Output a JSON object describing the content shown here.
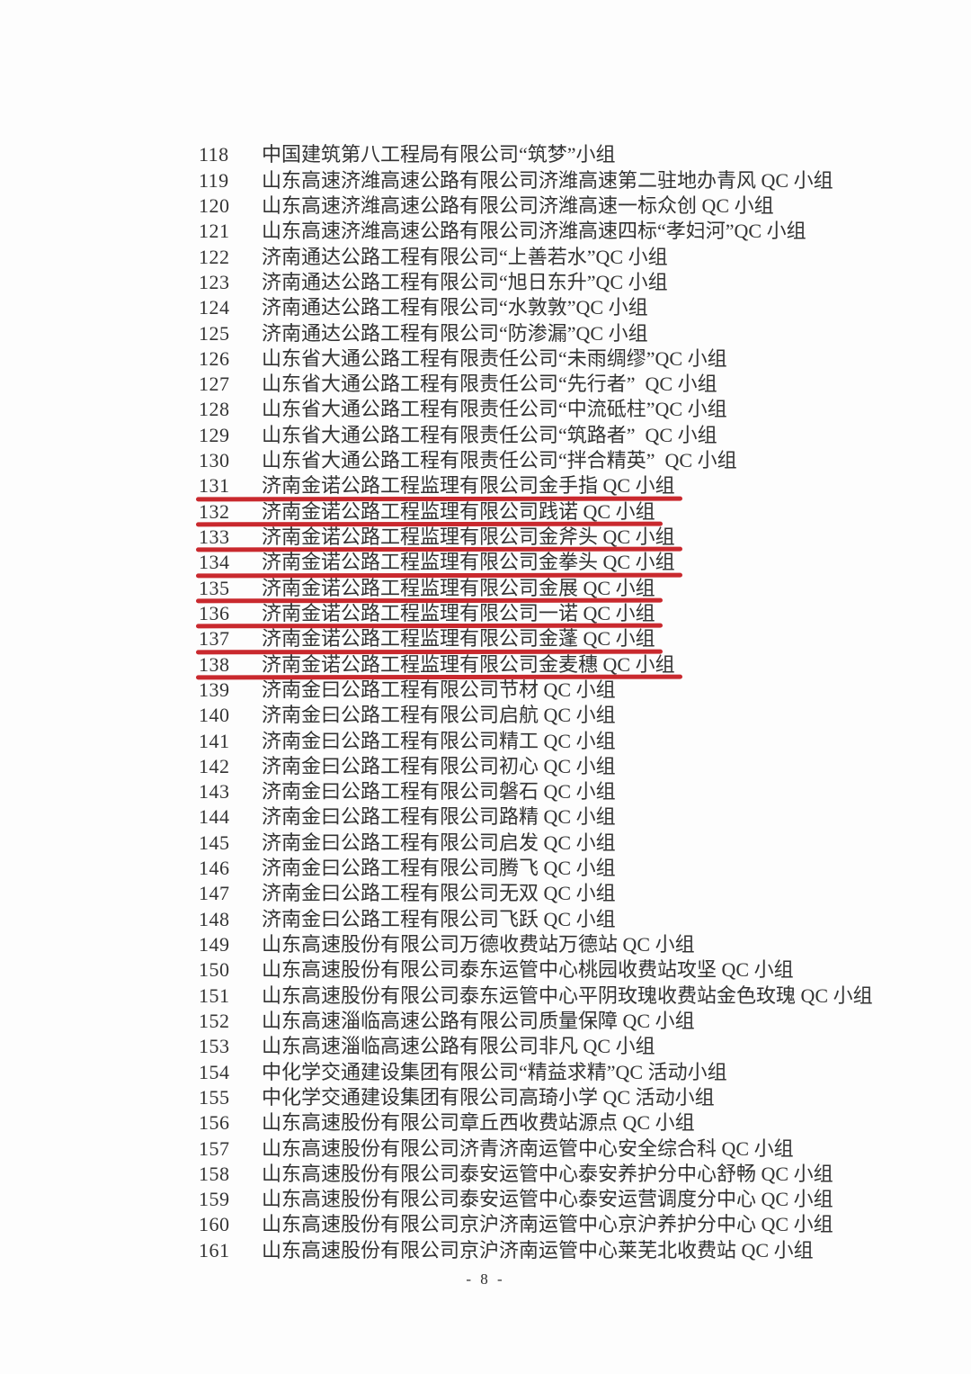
{
  "page": {
    "number_label": "- 8 -"
  },
  "colors": {
    "underline_red": "#c9292e",
    "ink": "#333333",
    "paper": "#fdfdfd"
  },
  "list": {
    "items": [
      {
        "no": "118",
        "text": "中国建筑第八工程局有限公司“筑梦”小组",
        "underlined": false
      },
      {
        "no": "119",
        "text": "山东高速济潍高速公路有限公司济潍高速第二驻地办青风 QC 小组",
        "underlined": false
      },
      {
        "no": "120",
        "text": "山东高速济潍高速公路有限公司济潍高速一标众创 QC 小组",
        "underlined": false
      },
      {
        "no": "121",
        "text": "山东高速济潍高速公路有限公司济潍高速四标“孝妇河”QC 小组",
        "underlined": false
      },
      {
        "no": "122",
        "text": "济南通达公路工程有限公司“上善若水”QC 小组",
        "underlined": false
      },
      {
        "no": "123",
        "text": "济南通达公路工程有限公司“旭日东升”QC 小组",
        "underlined": false
      },
      {
        "no": "124",
        "text": "济南通达公路工程有限公司“水敦敦”QC 小组",
        "underlined": false
      },
      {
        "no": "125",
        "text": "济南通达公路工程有限公司“防渗漏”QC 小组",
        "underlined": false
      },
      {
        "no": "126",
        "text": "山东省大通公路工程有限责任公司“未雨绸缪”QC 小组",
        "underlined": false
      },
      {
        "no": "127",
        "text": "山东省大通公路工程有限责任公司“先行者”  QC 小组",
        "underlined": false
      },
      {
        "no": "128",
        "text": "山东省大通公路工程有限责任公司“中流砥柱”QC 小组",
        "underlined": false
      },
      {
        "no": "129",
        "text": "山东省大通公路工程有限责任公司“筑路者”  QC 小组",
        "underlined": false
      },
      {
        "no": "130",
        "text": "山东省大通公路工程有限责任公司“拌合精英”  QC 小组",
        "underlined": false
      },
      {
        "no": "131",
        "text": "济南金诺公路工程监理有限公司金手指 QC 小组",
        "underlined": true
      },
      {
        "no": "132",
        "text": "济南金诺公路工程监理有限公司践诺 QC 小组",
        "underlined": true
      },
      {
        "no": "133",
        "text": "济南金诺公路工程监理有限公司金斧头 QC 小组",
        "underlined": true
      },
      {
        "no": "134",
        "text": "济南金诺公路工程监理有限公司金拳头 QC 小组",
        "underlined": true
      },
      {
        "no": "135",
        "text": "济南金诺公路工程监理有限公司金展 QC 小组",
        "underlined": true
      },
      {
        "no": "136",
        "text": "济南金诺公路工程监理有限公司一诺 QC 小组",
        "underlined": true
      },
      {
        "no": "137",
        "text": "济南金诺公路工程监理有限公司金蓬 QC 小组",
        "underlined": true
      },
      {
        "no": "138",
        "text": "济南金诺公路工程监理有限公司金麦穗 QC 小组",
        "underlined": true
      },
      {
        "no": "139",
        "text": "济南金曰公路工程有限公司节材 QC 小组",
        "underlined": false
      },
      {
        "no": "140",
        "text": "济南金曰公路工程有限公司启航 QC 小组",
        "underlined": false
      },
      {
        "no": "141",
        "text": "济南金曰公路工程有限公司精工 QC 小组",
        "underlined": false
      },
      {
        "no": "142",
        "text": "济南金曰公路工程有限公司初心 QC 小组",
        "underlined": false
      },
      {
        "no": "143",
        "text": "济南金曰公路工程有限公司磐石 QC 小组",
        "underlined": false
      },
      {
        "no": "144",
        "text": "济南金曰公路工程有限公司路精 QC 小组",
        "underlined": false
      },
      {
        "no": "145",
        "text": "济南金曰公路工程有限公司启发 QC 小组",
        "underlined": false
      },
      {
        "no": "146",
        "text": "济南金曰公路工程有限公司腾飞 QC 小组",
        "underlined": false
      },
      {
        "no": "147",
        "text": "济南金曰公路工程有限公司无双 QC 小组",
        "underlined": false
      },
      {
        "no": "148",
        "text": "济南金曰公路工程有限公司飞跃 QC 小组",
        "underlined": false
      },
      {
        "no": "149",
        "text": "山东高速股份有限公司万德收费站万德站 QC 小组",
        "underlined": false
      },
      {
        "no": "150",
        "text": "山东高速股份有限公司泰东运管中心桃园收费站攻坚 QC 小组",
        "underlined": false
      },
      {
        "no": "151",
        "text": "山东高速股份有限公司泰东运管中心平阴玫瑰收费站金色玫瑰 QC 小组",
        "underlined": false
      },
      {
        "no": "152",
        "text": "山东高速淄临高速公路有限公司质量保障 QC 小组",
        "underlined": false
      },
      {
        "no": "153",
        "text": "山东高速淄临高速公路有限公司非凡 QC 小组",
        "underlined": false
      },
      {
        "no": "154",
        "text": "中化学交通建设集团有限公司“精益求精”QC 活动小组",
        "underlined": false
      },
      {
        "no": "155",
        "text": "中化学交通建设集团有限公司高琦小学 QC 活动小组",
        "underlined": false
      },
      {
        "no": "156",
        "text": "山东高速股份有限公司章丘西收费站源点 QC 小组",
        "underlined": false
      },
      {
        "no": "157",
        "text": "山东高速股份有限公司济青济南运管中心安全综合科 QC 小组",
        "underlined": false
      },
      {
        "no": "158",
        "text": "山东高速股份有限公司泰安运管中心泰安养护分中心舒畅 QC 小组",
        "underlined": false
      },
      {
        "no": "159",
        "text": "山东高速股份有限公司泰安运管中心泰安运营调度分中心 QC 小组",
        "underlined": false
      },
      {
        "no": "160",
        "text": "山东高速股份有限公司京沪济南运管中心京沪养护分中心 QC 小组",
        "underlined": false
      },
      {
        "no": "161",
        "text": "山东高速股份有限公司京沪济南运管中心莱芜北收费站 QC 小组",
        "underlined": false
      }
    ]
  }
}
